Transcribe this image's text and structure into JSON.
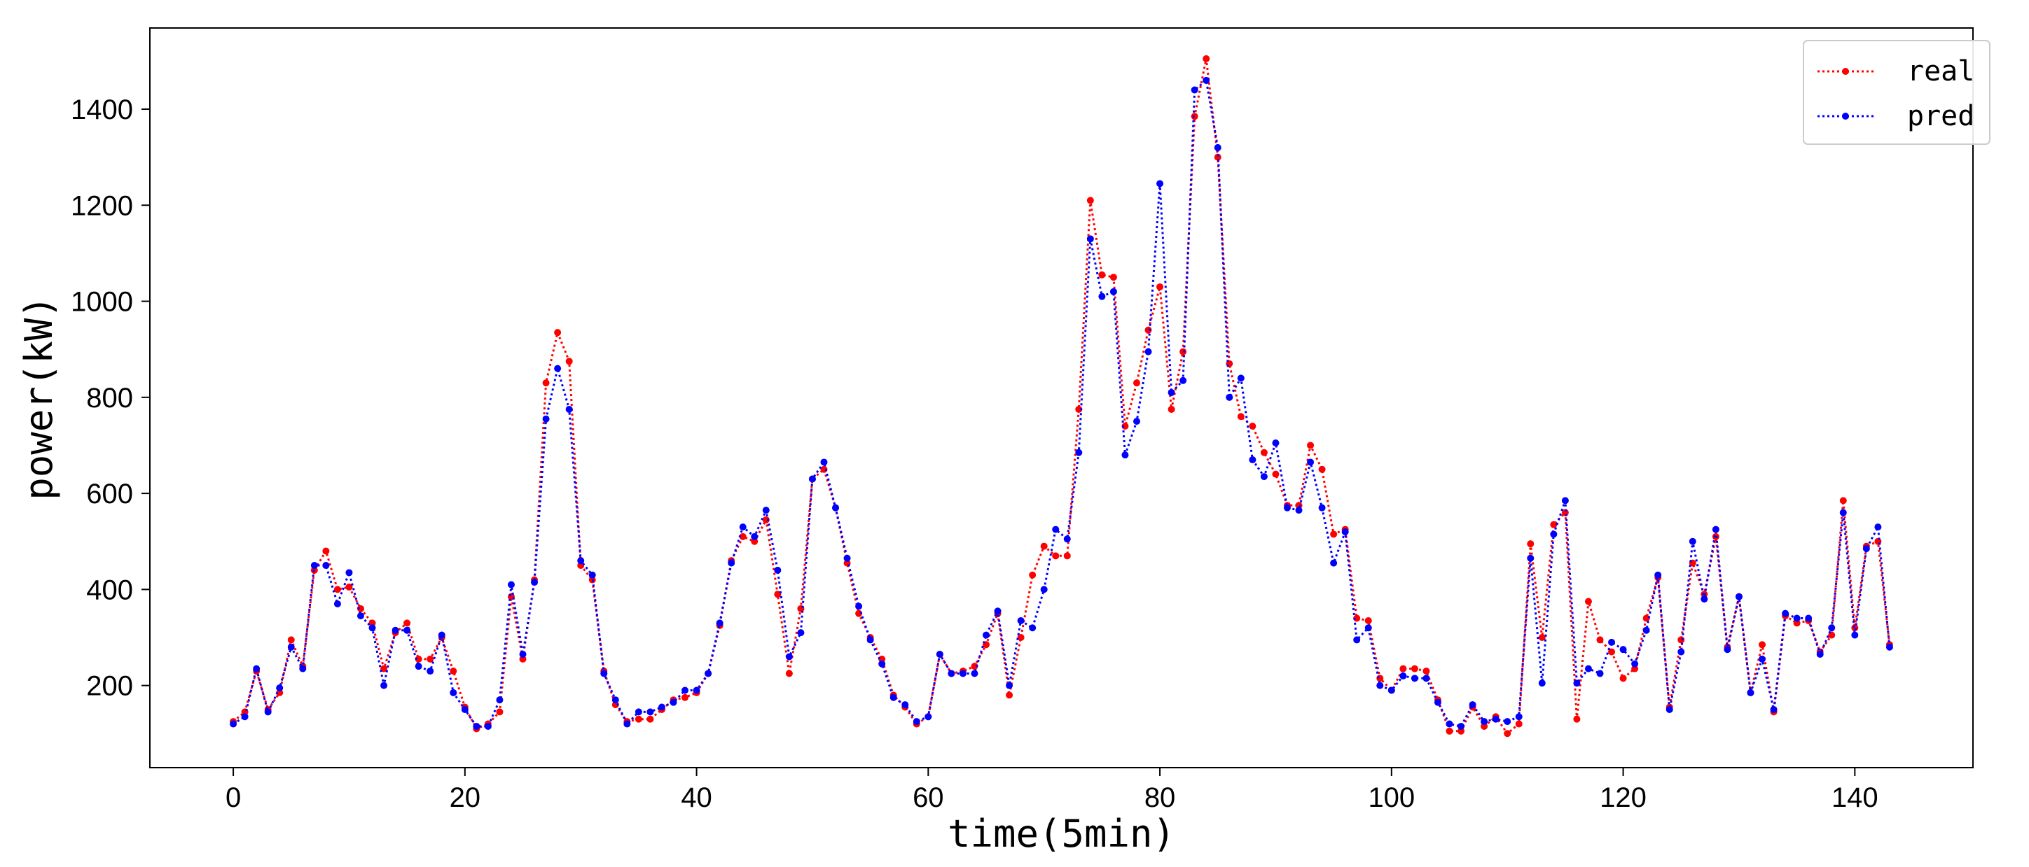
{
  "chart_data": {
    "type": "line",
    "title": "",
    "xlabel": "time(5min)",
    "ylabel": "power(kW)",
    "xlim": [
      -7.2,
      150.2
    ],
    "ylim": [
      29,
      1569
    ],
    "xticks": [
      0,
      20,
      40,
      60,
      80,
      100,
      120,
      140
    ],
    "yticks": [
      200,
      400,
      600,
      800,
      1000,
      1200,
      1400
    ],
    "grid": false,
    "legend_position": "top-right",
    "series": [
      {
        "name": "real",
        "color": "#ff0000",
        "line_style": "dotted",
        "marker": "circle",
        "values": [
          125,
          145,
          230,
          150,
          185,
          295,
          240,
          440,
          480,
          400,
          405,
          360,
          330,
          235,
          310,
          330,
          255,
          255,
          300,
          230,
          155,
          110,
          120,
          145,
          385,
          255,
          420,
          830,
          935,
          875,
          450,
          420,
          230,
          160,
          125,
          130,
          130,
          150,
          170,
          175,
          185,
          225,
          325,
          460,
          510,
          500,
          545,
          390,
          225,
          360,
          630,
          650,
          570,
          455,
          350,
          300,
          255,
          180,
          155,
          120,
          135,
          265,
          225,
          230,
          240,
          285,
          350,
          180,
          300,
          430,
          490,
          470,
          470,
          775,
          1210,
          1055,
          1050,
          740,
          830,
          940,
          1030,
          775,
          895,
          1385,
          1505,
          1300,
          870,
          760,
          740,
          685,
          640,
          575,
          575,
          700,
          650,
          515,
          525,
          340,
          335,
          215,
          190,
          235,
          235,
          230,
          170,
          105,
          105,
          155,
          115,
          135,
          100,
          120,
          495,
          300,
          535,
          560,
          130,
          375,
          295,
          270,
          215,
          235,
          340,
          425,
          155,
          295,
          455,
          390,
          510,
          280,
          385,
          185,
          285,
          145,
          345,
          330,
          335,
          270,
          305,
          585,
          320,
          490,
          500,
          285
        ]
      },
      {
        "name": "pred",
        "color": "#0000ff",
        "line_style": "dotted",
        "marker": "circle",
        "values": [
          120,
          135,
          235,
          145,
          195,
          280,
          235,
          450,
          450,
          370,
          435,
          345,
          320,
          200,
          315,
          315,
          240,
          230,
          305,
          185,
          150,
          115,
          115,
          170,
          410,
          265,
          415,
          755,
          860,
          775,
          460,
          430,
          225,
          170,
          120,
          145,
          145,
          155,
          165,
          190,
          190,
          225,
          330,
          455,
          530,
          510,
          565,
          440,
          260,
          310,
          630,
          665,
          570,
          465,
          365,
          295,
          245,
          175,
          160,
          125,
          135,
          265,
          225,
          225,
          225,
          305,
          355,
          200,
          335,
          320,
          400,
          525,
          505,
          685,
          1130,
          1010,
          1020,
          680,
          750,
          895,
          1245,
          810,
          835,
          1440,
          1460,
          1320,
          800,
          840,
          670,
          635,
          705,
          570,
          565,
          665,
          570,
          455,
          520,
          295,
          320,
          200,
          190,
          220,
          215,
          215,
          165,
          120,
          115,
          160,
          125,
          130,
          125,
          135,
          465,
          205,
          515,
          585,
          205,
          235,
          225,
          290,
          275,
          245,
          315,
          430,
          150,
          270,
          500,
          380,
          525,
          275,
          385,
          185,
          255,
          150,
          350,
          340,
          340,
          265,
          320,
          560,
          305,
          485,
          530,
          280
        ]
      }
    ]
  }
}
